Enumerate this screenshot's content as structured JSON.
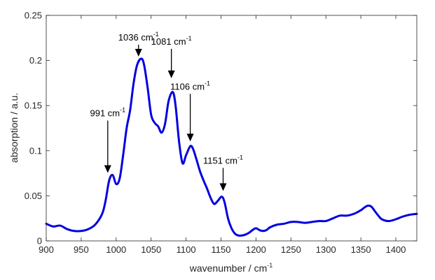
{
  "chart_data": {
    "type": "line",
    "title": "",
    "xlabel": "wavenumber / cm",
    "xlabel_sup": "-1",
    "ylabel": "absorption / a.u.",
    "xlim": [
      900,
      1430
    ],
    "ylim": [
      0,
      0.25
    ],
    "x_ticks": [
      "900",
      "950",
      "1000",
      "1050",
      "1100",
      "1150",
      "1200",
      "1250",
      "1300",
      "1350",
      "1400"
    ],
    "y_ticks": [
      "0",
      "0.05",
      "0.1",
      "0.15",
      "0.2",
      "0.25"
    ],
    "grid": false,
    "line_color": "#0000e0",
    "series": [
      {
        "x": [
          900,
          910,
          920,
          930,
          940,
          950,
          960,
          970,
          980,
          985,
          990,
          995,
          1000,
          1005,
          1010,
          1015,
          1020,
          1025,
          1030,
          1036,
          1040,
          1045,
          1050,
          1055,
          1060,
          1065,
          1070,
          1075,
          1081,
          1085,
          1090,
          1095,
          1100,
          1106,
          1110,
          1115,
          1120,
          1125,
          1130,
          1135,
          1140,
          1145,
          1151,
          1155,
          1160,
          1165,
          1170,
          1175,
          1180,
          1185,
          1190,
          1195,
          1200,
          1205,
          1210,
          1215,
          1220,
          1230,
          1240,
          1250,
          1260,
          1270,
          1280,
          1290,
          1300,
          1310,
          1320,
          1330,
          1340,
          1350,
          1355,
          1360,
          1365,
          1370,
          1375,
          1380,
          1390,
          1400,
          1410,
          1420,
          1430
        ],
        "y": [
          0.019,
          0.016,
          0.017,
          0.013,
          0.011,
          0.011,
          0.013,
          0.018,
          0.03,
          0.045,
          0.067,
          0.073,
          0.063,
          0.069,
          0.095,
          0.125,
          0.145,
          0.175,
          0.195,
          0.202,
          0.195,
          0.17,
          0.14,
          0.131,
          0.127,
          0.12,
          0.13,
          0.155,
          0.165,
          0.15,
          0.11,
          0.086,
          0.095,
          0.105,
          0.102,
          0.09,
          0.077,
          0.067,
          0.058,
          0.048,
          0.041,
          0.044,
          0.049,
          0.043,
          0.025,
          0.014,
          0.008,
          0.006,
          0.006,
          0.007,
          0.009,
          0.012,
          0.014,
          0.012,
          0.011,
          0.012,
          0.015,
          0.018,
          0.019,
          0.021,
          0.021,
          0.02,
          0.021,
          0.022,
          0.022,
          0.025,
          0.028,
          0.028,
          0.03,
          0.034,
          0.037,
          0.039,
          0.038,
          0.033,
          0.028,
          0.024,
          0.022,
          0.024,
          0.027,
          0.029,
          0.03
        ]
      }
    ],
    "annotations": [
      {
        "label": "991 cm",
        "sup": "-1",
        "x": 988,
        "y": 0.073
      },
      {
        "label": "1036 cm",
        "sup": "-1",
        "x": 1032,
        "y": 0.202
      },
      {
        "label": "1081 cm",
        "sup": "-1",
        "x": 1079,
        "y": 0.178
      },
      {
        "label": "1106 cm",
        "sup": "-1",
        "x": 1106,
        "y": 0.108
      },
      {
        "label": "1151 cm",
        "sup": "-1",
        "x": 1153,
        "y": 0.053
      }
    ]
  }
}
